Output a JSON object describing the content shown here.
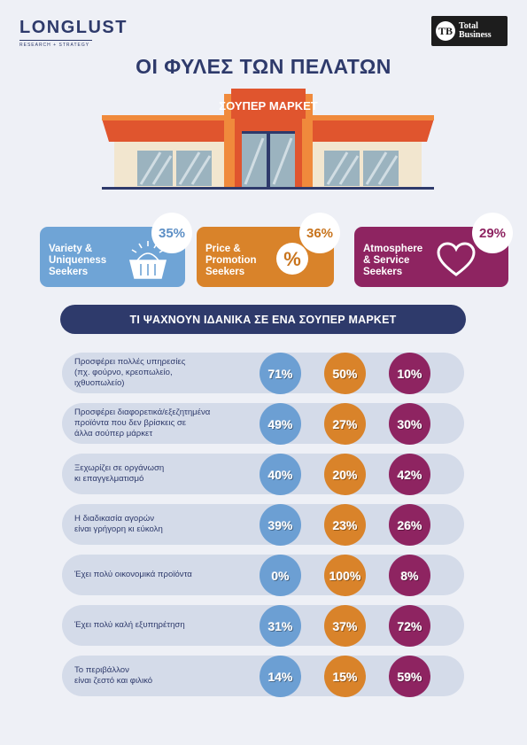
{
  "header": {
    "logo_left": "LONGLUST",
    "logo_left_sub": "RESEARCH + STRATEGY",
    "logo_right_mark": "TB",
    "logo_right_line1": "Total",
    "logo_right_line2": "Business",
    "title": "ΟΙ ΦΥΛΕΣ ΤΩΝ ΠΕΛΑΤΩΝ",
    "store_sign": "ΣΟΥΠΕΡ ΜΑΡΚΕΤ"
  },
  "colors": {
    "navy": "#2e3a6b",
    "blue": "#6c9fd3",
    "orange": "#d9832a",
    "plum": "#8e2461",
    "row_bg": "#d4dbe9"
  },
  "segments": [
    {
      "line1": "Variety &",
      "line2": "Uniqueness",
      "line3": "Seekers",
      "percent": "35%",
      "icon": "basket-icon"
    },
    {
      "line1": "Price &",
      "line2": "Promotion",
      "line3": "Seekers",
      "percent": "36%",
      "icon": "percent-icon"
    },
    {
      "line1": "Atmosphere",
      "line2": "& Service",
      "line3": "Seekers",
      "percent": "29%",
      "icon": "heart-icon"
    }
  ],
  "section_title": "ΤΙ ΨΑΧΝΟΥΝ ΙΔΑΝΙΚΑ ΣΕ ΕΝΑ ΣΟΥΠΕΡ ΜΑΡΚΕΤ",
  "chart_data": {
    "type": "table",
    "categories": [
      "Προσφέρει πολλές υπηρεσίες (πχ. φούρνο, κρεοπωλείο, ιχθυοπωλείο)",
      "Προσφέρει διαφορετικά/εξεζητημένα προϊόντα που δεν βρίσκεις σε άλλα σούπερ μάρκετ",
      "Ξεχωρίζει σε οργάνωση κι επαγγελματισμό",
      "Η διαδικασία αγορών είναι γρήγορη κι εύκολη",
      "Έχει πολύ οικονομικά προϊόντα",
      "Έχει πολύ καλή εξυπηρέτηση",
      "Το περιβάλλον είναι ζεστό και φιλικό"
    ],
    "rows": [
      {
        "label_lines": [
          "Προσφέρει πολλές υπηρεσίες",
          "(πχ. φούρνο, κρεοπωλείο,",
          "ιχθυοπωλείο)"
        ],
        "values": [
          "71%",
          "50%",
          "10%"
        ]
      },
      {
        "label_lines": [
          "Προσφέρει διαφορετικά/εξεζητημένα",
          "προϊόντα που δεν βρίσκεις σε",
          "άλλα σούπερ μάρκετ"
        ],
        "values": [
          "49%",
          "27%",
          "30%"
        ]
      },
      {
        "label_lines": [
          "Ξεχωρίζει σε οργάνωση",
          "κι επαγγελματισμό"
        ],
        "values": [
          "40%",
          "20%",
          "42%"
        ]
      },
      {
        "label_lines": [
          "Η διαδικασία αγορών",
          "είναι γρήγορη κι εύκολη"
        ],
        "values": [
          "39%",
          "23%",
          "26%"
        ]
      },
      {
        "label_lines": [
          "Έχει πολύ οικονομικά προϊόντα"
        ],
        "values": [
          "0%",
          "100%",
          "8%"
        ]
      },
      {
        "label_lines": [
          "Έχει πολύ καλή εξυπηρέτηση"
        ],
        "values": [
          "31%",
          "37%",
          "72%"
        ]
      },
      {
        "label_lines": [
          "Το περιβάλλον",
          "είναι ζεστό και φιλικό"
        ],
        "values": [
          "14%",
          "15%",
          "59%"
        ]
      }
    ],
    "series": [
      {
        "values": [
          71,
          49,
          40,
          39,
          0,
          31,
          14
        ]
      },
      {
        "values": [
          50,
          27,
          20,
          23,
          100,
          37,
          15
        ]
      },
      {
        "values": [
          10,
          30,
          42,
          26,
          8,
          72,
          59
        ]
      }
    ]
  }
}
